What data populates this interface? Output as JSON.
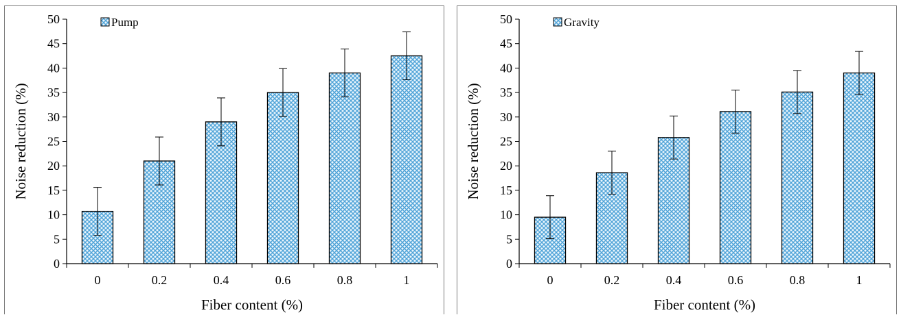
{
  "chart_data": [
    {
      "type": "bar",
      "categories": [
        "0",
        "0.2",
        "0.4",
        "0.6",
        "0.8",
        "1"
      ],
      "series": [
        {
          "name": "Pump",
          "values": [
            10.7,
            21,
            29,
            35,
            39,
            42.5
          ],
          "errors": [
            4.9,
            4.9,
            4.9,
            4.9,
            4.9,
            4.9
          ]
        }
      ],
      "title": "",
      "xlabel": "Fiber content (%)",
      "ylabel": "Noise reduction (%)",
      "ylim": [
        0,
        50
      ],
      "yticks": [
        "0",
        "5",
        "10",
        "15",
        "20",
        "25",
        "30",
        "35",
        "40",
        "45",
        "50"
      ],
      "legend_position": "top-left",
      "grid": false,
      "bar_color": "#4fa3d8"
    },
    {
      "type": "bar",
      "categories": [
        "0",
        "0.2",
        "0.4",
        "0.6",
        "0.8",
        "1"
      ],
      "series": [
        {
          "name": "Gravity",
          "values": [
            9.5,
            18.6,
            25.8,
            31.1,
            35.1,
            39
          ],
          "errors": [
            4.4,
            4.4,
            4.4,
            4.4,
            4.4,
            4.4
          ]
        }
      ],
      "title": "",
      "xlabel": "Fiber content (%)",
      "ylabel": "Noise reduction (%)",
      "ylim": [
        0,
        50
      ],
      "yticks": [
        "0",
        "5",
        "10",
        "15",
        "20",
        "25",
        "30",
        "35",
        "40",
        "45",
        "50"
      ],
      "legend_position": "top-left",
      "grid": false,
      "bar_color": "#4fa3d8"
    }
  ]
}
